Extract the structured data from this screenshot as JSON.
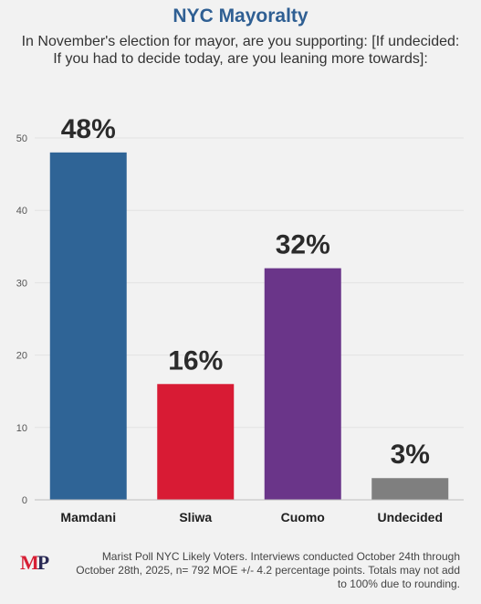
{
  "chart_data": {
    "type": "bar",
    "title": "NYC Mayoralty",
    "subtitle": "In November's election for mayor, are you supporting: [If undecided: If you had to decide today, are you leaning more towards]:",
    "categories": [
      "Mamdani",
      "Sliwa",
      "Cuomo",
      "Undecided"
    ],
    "values": [
      48,
      16,
      32,
      3
    ],
    "value_labels": [
      "48%",
      "16%",
      "32%",
      "3%"
    ],
    "colors": [
      "#2f6496",
      "#d81b34",
      "#6a3589",
      "#7f7f7f"
    ],
    "ylim": [
      0,
      50
    ],
    "yticks": [
      0,
      10,
      20,
      30,
      40,
      50
    ],
    "xlabel": "",
    "ylabel": "",
    "grid": true,
    "legend": "none"
  },
  "logo": {
    "text": "MP",
    "letter_1": "M",
    "letter_2": "P",
    "color_1": "#d71f35",
    "color_2": "#2a2a55"
  },
  "footnote": "Marist Poll NYC Likely Voters. Interviews conducted October 24th through October 28th, 2025, n= 792 MOE +/- 4.2 percentage points. Totals may not add to 100% due to rounding."
}
